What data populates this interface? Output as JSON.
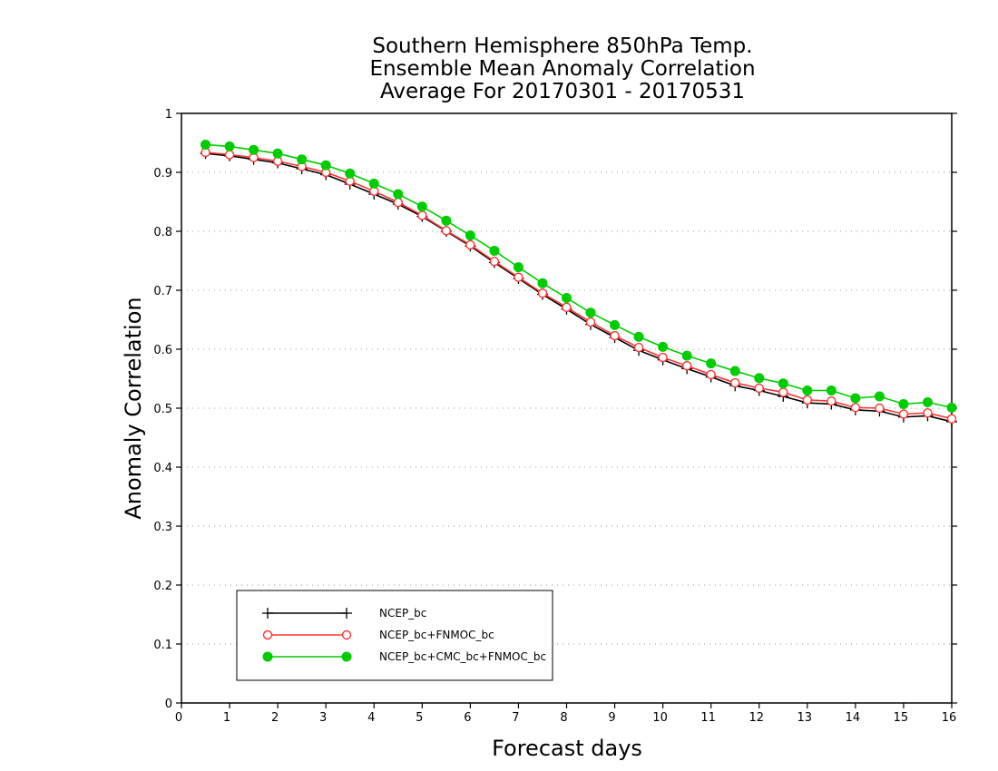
{
  "chart_data": {
    "type": "line",
    "title": [
      "Southern Hemisphere 850hPa Temp.",
      "Ensemble Mean Anomaly Correlation",
      "Average For 20170301 - 20170531"
    ],
    "xlabel": "Forecast days",
    "ylabel": "Anomaly Correlation",
    "xlim": [
      0,
      16
    ],
    "ylim": [
      0,
      1
    ],
    "xticks": [
      "0",
      "1",
      "2",
      "3",
      "4",
      "5",
      "6",
      "7",
      "8",
      "9",
      "10",
      "11",
      "12",
      "13",
      "14",
      "15",
      "16"
    ],
    "yticks": [
      "0",
      "0.1",
      "0.2",
      "0.3",
      "0.4",
      "0.5",
      "0.6",
      "0.7",
      "0.8",
      "0.9",
      "1"
    ],
    "grid": true,
    "legend_position": "bottom-left",
    "x": [
      0.5,
      1,
      1.5,
      2,
      2.5,
      3,
      3.5,
      4,
      4.5,
      5,
      5.5,
      6,
      6.5,
      7,
      7.5,
      8,
      8.5,
      9,
      9.5,
      10,
      10.5,
      11,
      11.5,
      12,
      12.5,
      13,
      13.5,
      14,
      14.5,
      15,
      15.5,
      16
    ],
    "series": [
      {
        "name": "NCEP_bc",
        "color": "#000000",
        "marker": "plus",
        "values": [
          0.932,
          0.928,
          0.922,
          0.916,
          0.906,
          0.896,
          0.88,
          0.863,
          0.846,
          0.825,
          0.8,
          0.775,
          0.747,
          0.72,
          0.693,
          0.668,
          0.642,
          0.62,
          0.598,
          0.582,
          0.567,
          0.553,
          0.538,
          0.53,
          0.52,
          0.509,
          0.507,
          0.497,
          0.495,
          0.485,
          0.487,
          0.477
        ]
      },
      {
        "name": "NCEP_bc+FNMOC_bc",
        "color": "#ff3333",
        "marker": "open-circle",
        "values": [
          0.934,
          0.93,
          0.925,
          0.919,
          0.91,
          0.9,
          0.885,
          0.868,
          0.849,
          0.827,
          0.801,
          0.777,
          0.749,
          0.722,
          0.695,
          0.671,
          0.646,
          0.623,
          0.603,
          0.586,
          0.572,
          0.557,
          0.543,
          0.534,
          0.527,
          0.514,
          0.512,
          0.501,
          0.5,
          0.49,
          0.492,
          0.482
        ]
      },
      {
        "name": "NCEP_bc+CMC_bc+FNMOC_bc",
        "color": "#00cc00",
        "marker": "filled-circle",
        "values": [
          0.947,
          0.944,
          0.938,
          0.932,
          0.922,
          0.912,
          0.898,
          0.881,
          0.863,
          0.842,
          0.818,
          0.793,
          0.767,
          0.739,
          0.712,
          0.687,
          0.662,
          0.641,
          0.621,
          0.604,
          0.589,
          0.576,
          0.563,
          0.551,
          0.542,
          0.53,
          0.53,
          0.517,
          0.52,
          0.507,
          0.51,
          0.501
        ]
      }
    ]
  }
}
